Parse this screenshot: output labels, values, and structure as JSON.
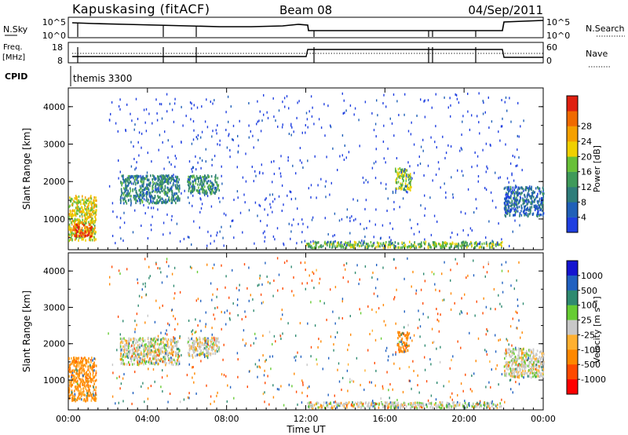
{
  "header": {
    "station": "Kapuskasing (fitACF)",
    "beam": "Beam 08",
    "date": "04/Sep/2011"
  },
  "nsky_panel": {
    "left_label": "N.Sky",
    "left_ticks": [
      "10^5",
      "10^0"
    ],
    "right_label": "N.Search",
    "right_ticks": [
      "10^5",
      "10^0"
    ]
  },
  "freq_panel": {
    "left_label_top": "Freq.",
    "left_label_unit": "[MHz]",
    "left_ticks": [
      "18",
      "8"
    ],
    "right_label": "Nave",
    "right_ticks": [
      "60",
      "0"
    ]
  },
  "cpid_panel": {
    "label": "CPID",
    "program": "themis 3300"
  },
  "colors": {
    "power": [
      "#1f3fe0",
      "#2060b8",
      "#2f7d7a",
      "#3f9a5a",
      "#68c038",
      "#f0d000",
      "#f5a000",
      "#f06a00",
      "#e02010"
    ],
    "velocity": [
      "#ff0000",
      "#ff4a00",
      "#ff8800",
      "#ffb030",
      "#c8c8c8",
      "#66cc33",
      "#2f8a70",
      "#2060c0",
      "#1414d0"
    ]
  },
  "chart_data": [
    {
      "type": "heatmap",
      "title": "Power",
      "ylabel": "Slant Range [km]",
      "y_ticks": [
        "1000",
        "2000",
        "3000",
        "4000"
      ],
      "ylim": [
        180,
        4500
      ],
      "colorbar_label": "Power [dB]",
      "colorbar_ticks": [
        "4",
        "8",
        "12",
        "16",
        "20",
        "24",
        "28"
      ],
      "clim": [
        0,
        30
      ],
      "x_unit": "hours UT",
      "regions": [
        {
          "t": [
            0.0,
            1.4
          ],
          "r": [
            450,
            1650
          ],
          "value": 18
        },
        {
          "t": [
            0.2,
            1.2
          ],
          "r": [
            560,
            900
          ],
          "value": 27
        },
        {
          "t": [
            2.6,
            5.6
          ],
          "r": [
            1450,
            2200
          ],
          "value": 9
        },
        {
          "t": [
            6.0,
            7.6
          ],
          "r": [
            1700,
            2200
          ],
          "value": 10
        },
        {
          "t": [
            12.0,
            21.9
          ],
          "r": [
            260,
            420
          ],
          "value": 14
        },
        {
          "t": [
            16.5,
            17.3
          ],
          "r": [
            1800,
            2400
          ],
          "value": 15
        },
        {
          "t": [
            22.0,
            24.0
          ],
          "r": [
            1100,
            1900
          ],
          "value": 6
        }
      ]
    },
    {
      "type": "heatmap",
      "title": "Velocity",
      "ylabel": "Slant Range [km]",
      "y_ticks": [
        "1000",
        "2000",
        "3000",
        "4000"
      ],
      "ylim": [
        180,
        4500
      ],
      "colorbar_label": "Velocity [m s⁻¹]",
      "colorbar_ticks": [
        "1000",
        "500",
        "100",
        "25",
        "-25",
        "-100",
        "-500",
        "-1000"
      ],
      "x_unit": "hours UT",
      "x_ticks": [
        "00:00",
        "04:00",
        "08:00",
        "12:00",
        "16:00",
        "20:00",
        "00:00"
      ],
      "xlabel": "Time UT",
      "regions": [
        {
          "t": [
            0.0,
            1.4
          ],
          "r": [
            450,
            1650
          ],
          "value": -120
        },
        {
          "t": [
            2.6,
            5.6
          ],
          "r": [
            1450,
            2200
          ],
          "value": 0
        },
        {
          "t": [
            6.0,
            7.6
          ],
          "r": [
            1700,
            2200
          ],
          "value": 0
        },
        {
          "t": [
            12.0,
            21.9
          ],
          "r": [
            260,
            420
          ],
          "value": 0
        },
        {
          "t": [
            16.6,
            17.2
          ],
          "r": [
            1800,
            2350
          ],
          "value": -300
        },
        {
          "t": [
            22.0,
            24.0
          ],
          "r": [
            1100,
            1900
          ],
          "value": 0
        }
      ]
    }
  ]
}
